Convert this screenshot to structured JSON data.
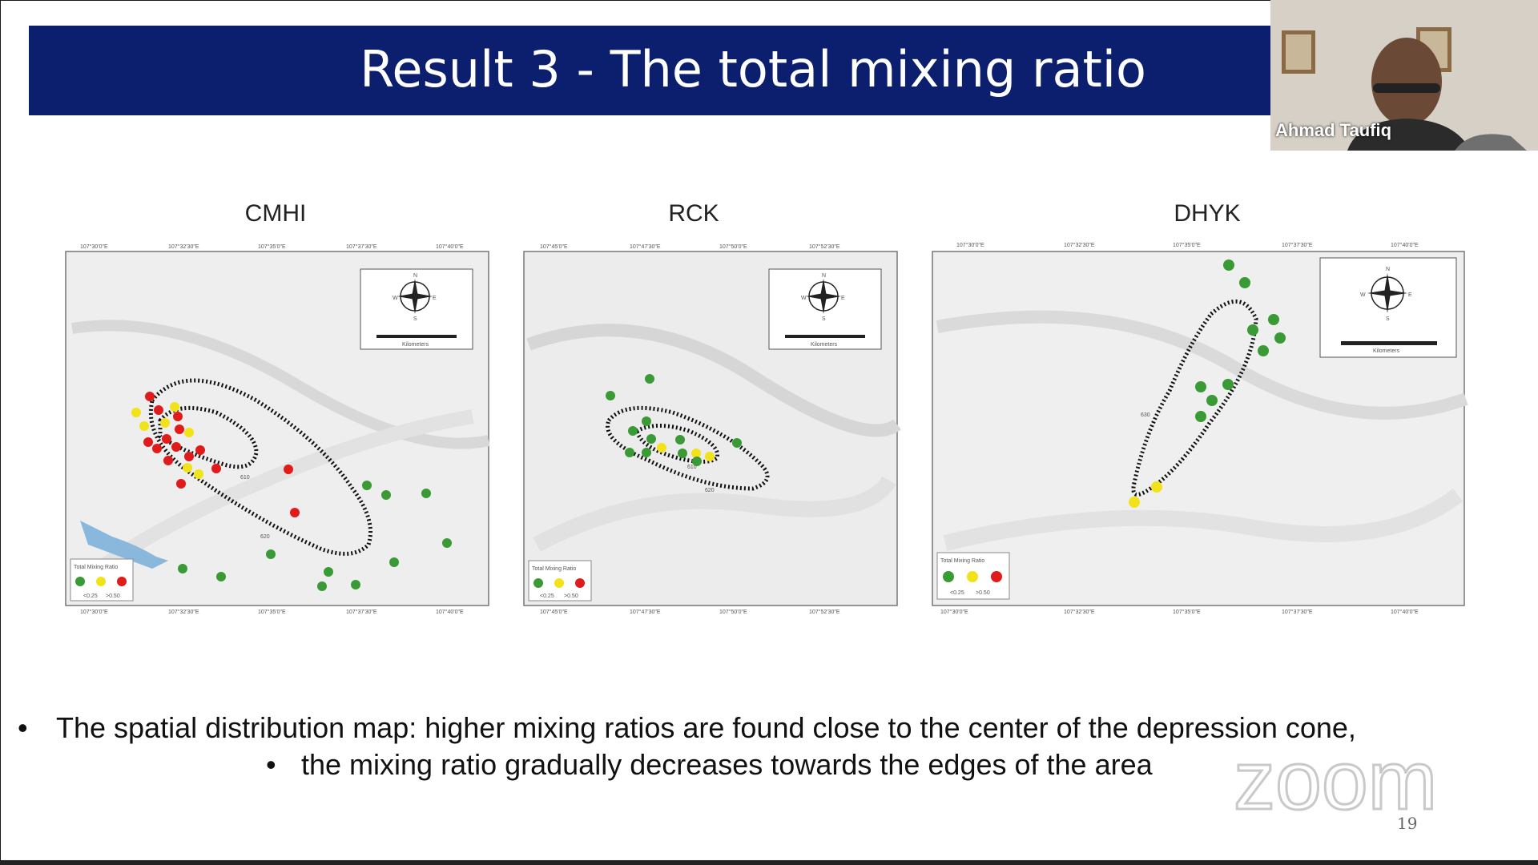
{
  "slide": {
    "title": "Result 3 - The total mixing ratio",
    "page_number": "19"
  },
  "panels": [
    {
      "id": "cmhi",
      "label": "CMHI",
      "legend_title": "Total Mixing Ratio",
      "legend_ticks": [
        "<0.25",
        ">0.50"
      ],
      "contours": [
        "610",
        "620"
      ],
      "north": "N",
      "south": "S",
      "east": "E",
      "west": "W",
      "scale_label": "Kilometers",
      "x_ticks": [
        "107°30'0\"E",
        "107°32'30\"E",
        "107°35'0\"E",
        "107°37'30\"E",
        "107°40'0\"E"
      ]
    },
    {
      "id": "rck",
      "label": "RCK",
      "legend_title": "Total Mixing Ratio",
      "legend_ticks": [
        "<0.25",
        ">0.50"
      ],
      "contours": [
        "610",
        "620"
      ],
      "north": "N",
      "south": "S",
      "east": "E",
      "west": "W",
      "scale_label": "Kilometers",
      "x_ticks": [
        "107°45'0\"E",
        "107°47'30\"E",
        "107°50'0\"E",
        "107°52'30\"E"
      ]
    },
    {
      "id": "dhyk",
      "label": "DHYK",
      "legend_title": "Total Mixing Ratio",
      "legend_ticks": [
        "<0.25",
        ">0.50"
      ],
      "contours": [
        "630"
      ],
      "north": "N",
      "south": "S",
      "east": "E",
      "west": "W",
      "scale_label": "Kilometers",
      "x_ticks": [
        "107°30'0\"E",
        "107°32'30\"E",
        "107°35'0\"E",
        "107°37'30\"E",
        "107°40'0\"E"
      ]
    }
  ],
  "legend_colors": {
    "low": "#3a9a35",
    "mid": "#f2e21a",
    "high": "#e01b1b"
  },
  "bullets": [
    "The spatial distribution map: higher mixing ratios are found close to the center of the depression cone,",
    "the mixing ratio gradually decreases towards the edges of the area"
  ],
  "bullet_symbol": "•",
  "watermark": "zoom",
  "video": {
    "participant_name": "Ahmad Taufiq"
  }
}
